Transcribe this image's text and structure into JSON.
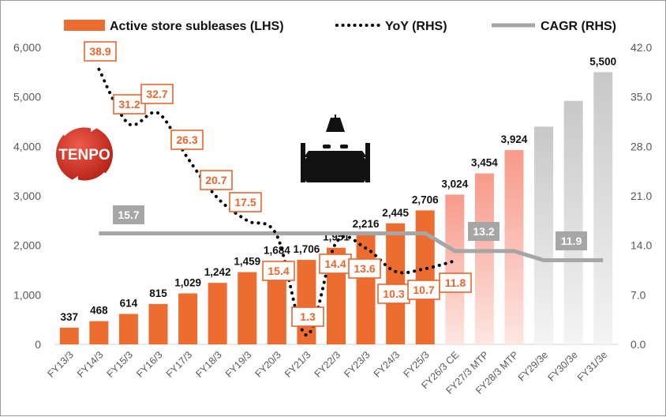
{
  "chart_data": {
    "type": "bar",
    "categories": [
      "FY13/3",
      "FY14/3",
      "FY15/3",
      "FY16/3",
      "FY17/3",
      "FY18/3",
      "FY19/3",
      "FY20/3",
      "FY21/3",
      "FY22/3",
      "FY23/3",
      "FY24/3",
      "FY25/3",
      "FY26/3 CE",
      "FY27/3 MTP",
      "FY28/3 MTP",
      "FY29/3e",
      "FY30/3e",
      "FY31/3e"
    ],
    "series": [
      {
        "name": "Active store subleases (LHS)",
        "axis": "left",
        "values": [
          337,
          468,
          614,
          815,
          1029,
          1242,
          1459,
          1684,
          1706,
          1951,
          2216,
          2445,
          2706,
          3024,
          3454,
          3924,
          4400,
          4920,
          5500
        ],
        "data_labels": [
          "337",
          "468",
          "614",
          "815",
          "1,029",
          "1,242",
          "1,459",
          "1,684",
          "1,706",
          "1,951",
          "2,216",
          "2,445",
          "2,706",
          "3,024",
          "3,454",
          "3,924",
          "",
          "",
          "5,500"
        ]
      },
      {
        "name": "YoY (RHS)",
        "axis": "right",
        "values": [
          null,
          38.9,
          31.2,
          32.7,
          26.3,
          20.7,
          17.5,
          15.4,
          1.3,
          14.4,
          13.6,
          10.3,
          10.7,
          11.8,
          null,
          null,
          null,
          null,
          null
        ],
        "data_labels": [
          "",
          "38.9",
          "31.2",
          "32.7",
          "26.3",
          "20.7",
          "17.5",
          "15.4",
          "1.3",
          "14.4",
          "13.6",
          "10.3",
          "10.7",
          "11.8",
          "",
          "",
          "",
          "",
          ""
        ]
      },
      {
        "name": "CAGR (RHS)",
        "axis": "right",
        "segments": [
          {
            "from": "FY14/3",
            "to": "FY25/3",
            "value": 15.7,
            "label": "15.7"
          },
          {
            "from": "FY26/3 CE",
            "to": "FY28/3 MTP",
            "value": 13.2,
            "label": "13.2"
          },
          {
            "from": "FY29/3e",
            "to": "FY31/3e",
            "value": 11.9,
            "label": "11.9"
          }
        ]
      }
    ],
    "y_left": {
      "range": [
        0,
        6000
      ],
      "ticks": [
        "0",
        "1,000",
        "2,000",
        "3,000",
        "4,000",
        "5,000",
        "6,000"
      ]
    },
    "y_right": {
      "range": [
        0,
        42
      ],
      "ticks": [
        "0.0",
        "7.0",
        "14.0",
        "21.0",
        "28.0",
        "35.0",
        "42.0"
      ]
    },
    "legend_position": "top",
    "grid": false,
    "colors": {
      "bar_actual": "#ed6c2f",
      "bar_plan_top": "#f79a8a",
      "bar_plan_bottom": "#fde6e2",
      "bar_estimate_top": "#c8c8c8",
      "bar_estimate_bottom": "#f4f4f4",
      "yoy_line": "#000000",
      "yoy_box_border": "#e8662f",
      "cagr_line": "#a6a6a6",
      "cagr_box": "#a6a6a6",
      "logo_red": "#d6362c"
    },
    "logo": {
      "text": "TENPO"
    },
    "icon": "restaurant-table-icon"
  }
}
